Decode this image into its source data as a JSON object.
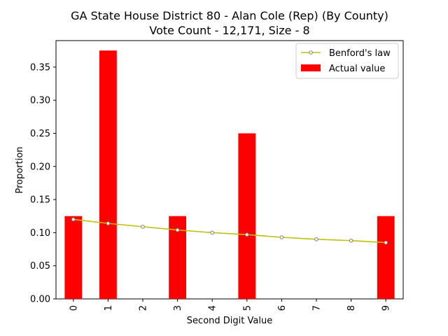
{
  "chart_data": {
    "type": "bar",
    "title_line1": "GA State House District 80 - Alan Cole (Rep) (By County)",
    "title_line2": "Vote Count - 12,171, Size - 8",
    "xlabel": "Second Digit Value",
    "ylabel": "Proportion",
    "categories": [
      "0",
      "1",
      "2",
      "3",
      "4",
      "5",
      "6",
      "7",
      "8",
      "9"
    ],
    "ylim": [
      0,
      0.39
    ],
    "yticks": [
      "0.00",
      "0.05",
      "0.10",
      "0.15",
      "0.20",
      "0.25",
      "0.30",
      "0.35"
    ],
    "ytick_values": [
      0,
      0.05,
      0.1,
      0.15,
      0.2,
      0.25,
      0.3,
      0.35
    ],
    "series": [
      {
        "name": "Actual value",
        "kind": "bar",
        "color": "#ff0000",
        "values": [
          0.125,
          0.375,
          0,
          0.125,
          0,
          0.25,
          0,
          0,
          0,
          0.125
        ]
      },
      {
        "name": "Benford's law",
        "kind": "line",
        "color": "#bfbf00",
        "marker_color": "#808080",
        "values": [
          0.12,
          0.114,
          0.109,
          0.104,
          0.1,
          0.097,
          0.093,
          0.09,
          0.088,
          0.085
        ]
      }
    ],
    "legend": {
      "position": "top-right",
      "entries": [
        "Benford's law",
        "Actual value"
      ]
    },
    "grid": false
  }
}
